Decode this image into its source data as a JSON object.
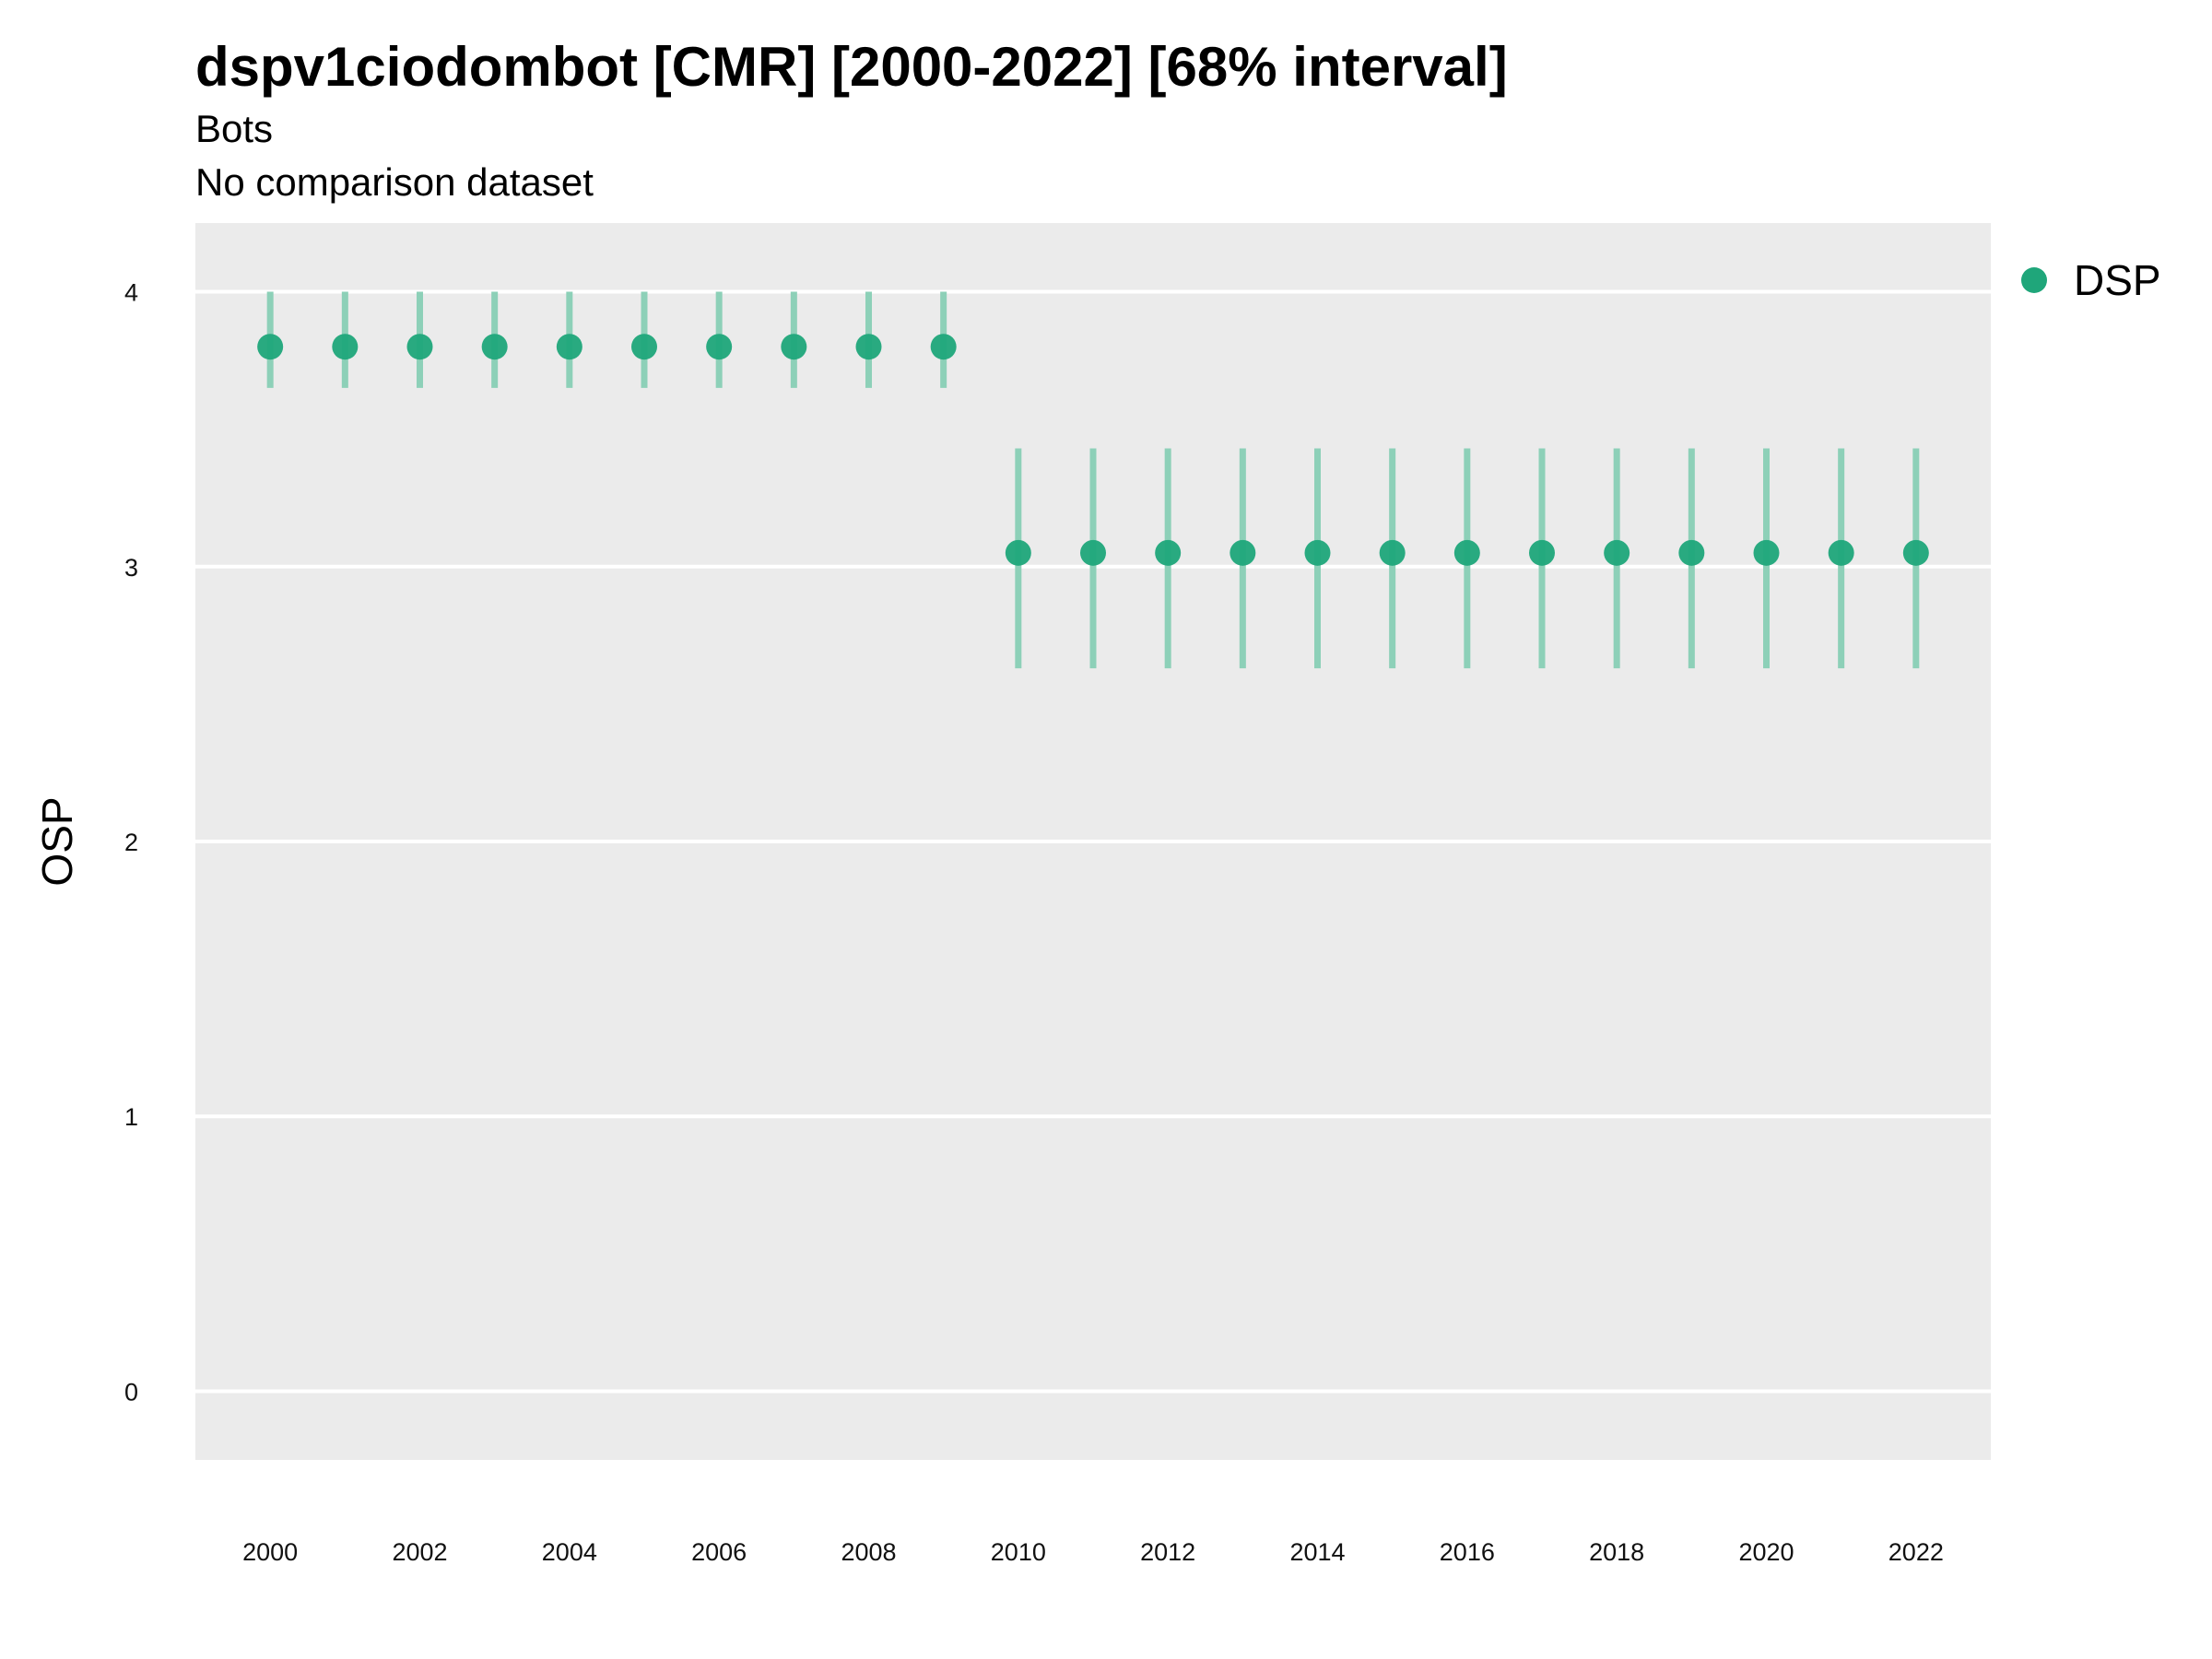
{
  "chart_data": {
    "type": "scatter",
    "title": "dspv1ciodombot [CMR] [2000-2022] [68% interval]",
    "subtitle": "Bots",
    "caption": "No comparison dataset",
    "xlabel": "",
    "ylabel": "OSP",
    "xlim": [
      1999,
      2023
    ],
    "ylim": [
      -0.25,
      4.25
    ],
    "x_ticks": [
      "2000",
      "2002",
      "2004",
      "2006",
      "2008",
      "2010",
      "2012",
      "2014",
      "2016",
      "2018",
      "2020",
      "2022"
    ],
    "y_ticks": [
      "0",
      "1",
      "2",
      "3",
      "4"
    ],
    "grid": true,
    "legend_position": "top-right",
    "series": [
      {
        "name": "DSP",
        "color": "#1fa67a",
        "x": [
          2000,
          2001,
          2002,
          2003,
          2004,
          2005,
          2006,
          2007,
          2008,
          2009,
          2010,
          2011,
          2012,
          2013,
          2014,
          2015,
          2016,
          2017,
          2018,
          2019,
          2020,
          2021,
          2022
        ],
        "y": [
          3.8,
          3.8,
          3.8,
          3.8,
          3.8,
          3.8,
          3.8,
          3.8,
          3.8,
          3.8,
          3.05,
          3.05,
          3.05,
          3.05,
          3.05,
          3.05,
          3.05,
          3.05,
          3.05,
          3.05,
          3.05,
          3.05,
          3.05
        ],
        "lower": [
          3.65,
          3.65,
          3.65,
          3.65,
          3.65,
          3.65,
          3.65,
          3.65,
          3.65,
          3.65,
          2.63,
          2.63,
          2.63,
          2.63,
          2.63,
          2.63,
          2.63,
          2.63,
          2.63,
          2.63,
          2.63,
          2.63,
          2.63
        ],
        "upper": [
          4.0,
          4.0,
          4.0,
          4.0,
          4.0,
          4.0,
          4.0,
          4.0,
          4.0,
          4.0,
          3.43,
          3.43,
          3.43,
          3.43,
          3.43,
          3.43,
          3.43,
          3.43,
          3.43,
          3.43,
          3.43,
          3.43,
          3.43
        ]
      }
    ]
  },
  "colors": {
    "panel": "#ebebeb",
    "grid": "#ffffff",
    "point": "#1fa67a",
    "interval": "#8dd0b8"
  }
}
